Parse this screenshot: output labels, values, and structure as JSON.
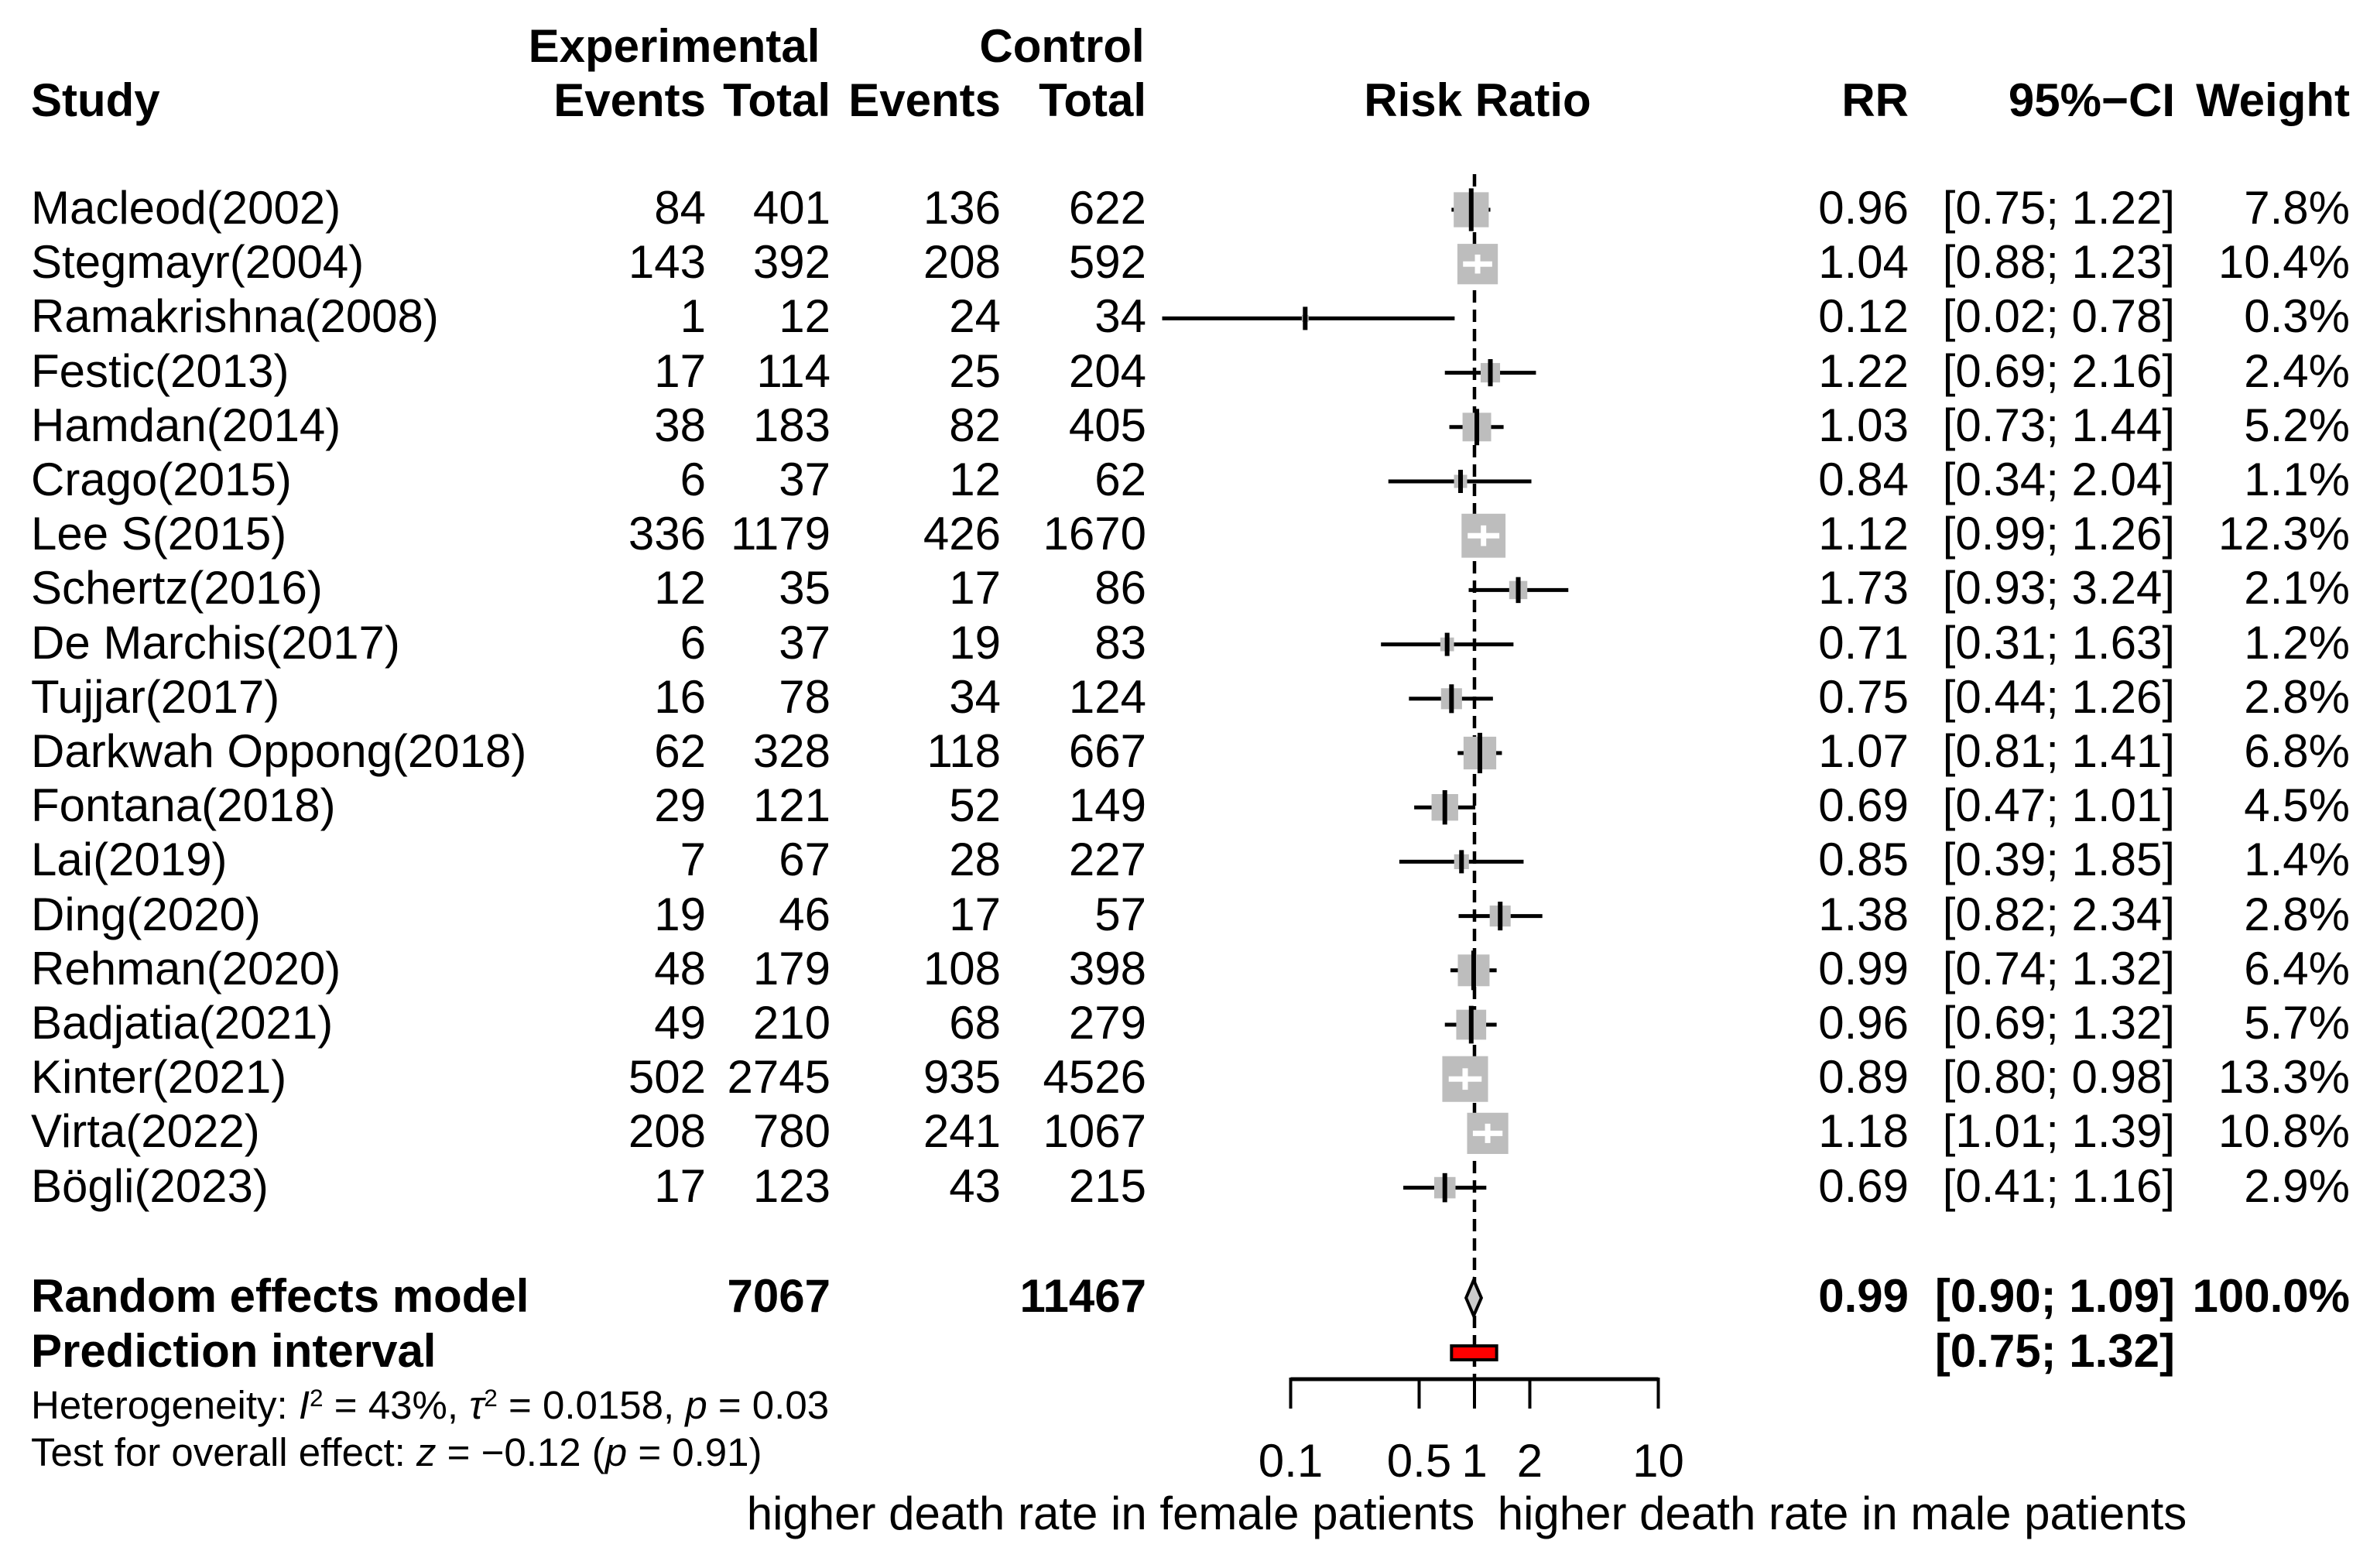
{
  "chart_data": {
    "type": "forest",
    "effect_measure": "Risk Ratio",
    "header": {
      "group1": "Experimental",
      "group2": "Control",
      "study": "Study",
      "events1": "Events",
      "total1": "Total",
      "events2": "Events",
      "total2": "Total",
      "risk_ratio": "Risk Ratio",
      "rr": "RR",
      "ci": "95%−CI",
      "weight": "Weight"
    },
    "studies": [
      {
        "name": "Macleod(2002)",
        "exp_events": 84,
        "exp_total": 401,
        "ctrl_events": 136,
        "ctrl_total": 622,
        "rr": 0.96,
        "ci_lo": 0.75,
        "ci_hi": 1.22,
        "weight_pct": 7.8
      },
      {
        "name": "Stegmayr(2004)",
        "exp_events": 143,
        "exp_total": 392,
        "ctrl_events": 208,
        "ctrl_total": 592,
        "rr": 1.04,
        "ci_lo": 0.88,
        "ci_hi": 1.23,
        "weight_pct": 10.4
      },
      {
        "name": "Ramakrishna(2008)",
        "exp_events": 1,
        "exp_total": 12,
        "ctrl_events": 24,
        "ctrl_total": 34,
        "rr": 0.12,
        "ci_lo": 0.02,
        "ci_hi": 0.78,
        "weight_pct": 0.3
      },
      {
        "name": "Festic(2013)",
        "exp_events": 17,
        "exp_total": 114,
        "ctrl_events": 25,
        "ctrl_total": 204,
        "rr": 1.22,
        "ci_lo": 0.69,
        "ci_hi": 2.16,
        "weight_pct": 2.4
      },
      {
        "name": "Hamdan(2014)",
        "exp_events": 38,
        "exp_total": 183,
        "ctrl_events": 82,
        "ctrl_total": 405,
        "rr": 1.03,
        "ci_lo": 0.73,
        "ci_hi": 1.44,
        "weight_pct": 5.2
      },
      {
        "name": "Crago(2015)",
        "exp_events": 6,
        "exp_total": 37,
        "ctrl_events": 12,
        "ctrl_total": 62,
        "rr": 0.84,
        "ci_lo": 0.34,
        "ci_hi": 2.04,
        "weight_pct": 1.1
      },
      {
        "name": "Lee S(2015)",
        "exp_events": 336,
        "exp_total": 1179,
        "ctrl_events": 426,
        "ctrl_total": 1670,
        "rr": 1.12,
        "ci_lo": 0.99,
        "ci_hi": 1.26,
        "weight_pct": 12.3
      },
      {
        "name": "Schertz(2016)",
        "exp_events": 12,
        "exp_total": 35,
        "ctrl_events": 17,
        "ctrl_total": 86,
        "rr": 1.73,
        "ci_lo": 0.93,
        "ci_hi": 3.24,
        "weight_pct": 2.1
      },
      {
        "name": "De Marchis(2017)",
        "exp_events": 6,
        "exp_total": 37,
        "ctrl_events": 19,
        "ctrl_total": 83,
        "rr": 0.71,
        "ci_lo": 0.31,
        "ci_hi": 1.63,
        "weight_pct": 1.2
      },
      {
        "name": "Tujjar(2017)",
        "exp_events": 16,
        "exp_total": 78,
        "ctrl_events": 34,
        "ctrl_total": 124,
        "rr": 0.75,
        "ci_lo": 0.44,
        "ci_hi": 1.26,
        "weight_pct": 2.8
      },
      {
        "name": "Darkwah Oppong(2018)",
        "exp_events": 62,
        "exp_total": 328,
        "ctrl_events": 118,
        "ctrl_total": 667,
        "rr": 1.07,
        "ci_lo": 0.81,
        "ci_hi": 1.41,
        "weight_pct": 6.8
      },
      {
        "name": "Fontana(2018)",
        "exp_events": 29,
        "exp_total": 121,
        "ctrl_events": 52,
        "ctrl_total": 149,
        "rr": 0.69,
        "ci_lo": 0.47,
        "ci_hi": 1.01,
        "weight_pct": 4.5
      },
      {
        "name": "Lai(2019)",
        "exp_events": 7,
        "exp_total": 67,
        "ctrl_events": 28,
        "ctrl_total": 227,
        "rr": 0.85,
        "ci_lo": 0.39,
        "ci_hi": 1.85,
        "weight_pct": 1.4
      },
      {
        "name": "Ding(2020)",
        "exp_events": 19,
        "exp_total": 46,
        "ctrl_events": 17,
        "ctrl_total": 57,
        "rr": 1.38,
        "ci_lo": 0.82,
        "ci_hi": 2.34,
        "weight_pct": 2.8
      },
      {
        "name": "Rehman(2020)",
        "exp_events": 48,
        "exp_total": 179,
        "ctrl_events": 108,
        "ctrl_total": 398,
        "rr": 0.99,
        "ci_lo": 0.74,
        "ci_hi": 1.32,
        "weight_pct": 6.4
      },
      {
        "name": "Badjatia(2021)",
        "exp_events": 49,
        "exp_total": 210,
        "ctrl_events": 68,
        "ctrl_total": 279,
        "rr": 0.96,
        "ci_lo": 0.69,
        "ci_hi": 1.32,
        "weight_pct": 5.7
      },
      {
        "name": "Kinter(2021)",
        "exp_events": 502,
        "exp_total": 2745,
        "ctrl_events": 935,
        "ctrl_total": 4526,
        "rr": 0.89,
        "ci_lo": 0.8,
        "ci_hi": 0.98,
        "weight_pct": 13.3
      },
      {
        "name": "Virta(2022)",
        "exp_events": 208,
        "exp_total": 780,
        "ctrl_events": 241,
        "ctrl_total": 1067,
        "rr": 1.18,
        "ci_lo": 1.01,
        "ci_hi": 1.39,
        "weight_pct": 10.8
      },
      {
        "name": "Bögli(2023)",
        "exp_events": 17,
        "exp_total": 123,
        "ctrl_events": 43,
        "ctrl_total": 215,
        "rr": 0.69,
        "ci_lo": 0.41,
        "ci_hi": 1.16,
        "weight_pct": 2.9
      }
    ],
    "summary": {
      "label": "Random effects model",
      "exp_total": 7067,
      "ctrl_total": 11467,
      "rr": 0.99,
      "ci_lo": 0.9,
      "ci_hi": 1.09,
      "weight_pct": 100.0
    },
    "prediction": {
      "label": "Prediction interval",
      "ci_lo": 0.75,
      "ci_hi": 1.32
    },
    "heterogeneity_segments": [
      {
        "t": "Heterogeneity: "
      },
      {
        "t": "I",
        "style": "it"
      },
      {
        "t": "2",
        "style": "sup"
      },
      {
        "t": " = 43%, "
      },
      {
        "t": "τ",
        "style": "it"
      },
      {
        "t": "2",
        "style": "sup"
      },
      {
        "t": " = 0.0158, "
      },
      {
        "t": "p",
        "style": "it"
      },
      {
        "t": " = 0.03"
      }
    ],
    "overall_test_segments": [
      {
        "t": "Test for overall effect: "
      },
      {
        "t": "z",
        "style": "it"
      },
      {
        "t": " = −0.12 ("
      },
      {
        "t": "p",
        "style": "it"
      },
      {
        "t": " = 0.91)"
      }
    ],
    "axis": {
      "scale": "log",
      "min": 0.1,
      "max": 10,
      "ticks": [
        0.1,
        0.5,
        1,
        2,
        10
      ],
      "ref_line": 1,
      "left_label": "higher death rate in female patients",
      "right_label": "higher death rate in male patients"
    },
    "colors": {
      "square": "#bdbdbd",
      "diamond_fill": "#cccccc",
      "prediction_fill": "#ff0000",
      "line": "#000000",
      "white_cross": "#ffffff"
    }
  }
}
